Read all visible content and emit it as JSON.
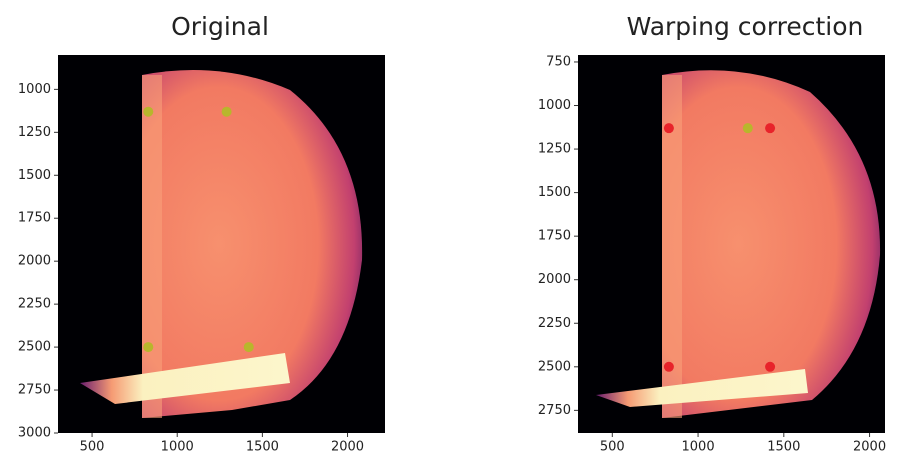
{
  "chart_data": [
    {
      "type": "image",
      "title": "Original",
      "xlim": [
        300,
        2220
      ],
      "ylim": [
        3000,
        800
      ],
      "xticks": [
        500,
        1000,
        1500,
        2000
      ],
      "yticks": [
        1000,
        1250,
        1500,
        1750,
        2000,
        2250,
        2500,
        2750,
        3000
      ],
      "points": [
        {
          "color": "#b8b62c",
          "x": [
            830,
            1290,
            830,
            1420
          ],
          "y": [
            1130,
            1130,
            2500,
            2500
          ]
        }
      ]
    },
    {
      "type": "image",
      "title": "Warping correction",
      "xlim": [
        300,
        2090
      ],
      "ylim": [
        2880,
        710
      ],
      "xticks": [
        500,
        1000,
        1500,
        2000
      ],
      "yticks": [
        750,
        1000,
        1250,
        1500,
        1750,
        2000,
        2250,
        2500,
        2750
      ],
      "points": [
        {
          "color": "#e8232a",
          "x": [
            830,
            1420,
            830,
            1420
          ],
          "y": [
            1130,
            1130,
            2500,
            2500
          ]
        },
        {
          "color": "#b8b62c",
          "x": [
            1290
          ],
          "y": [
            1130
          ]
        }
      ]
    }
  ]
}
